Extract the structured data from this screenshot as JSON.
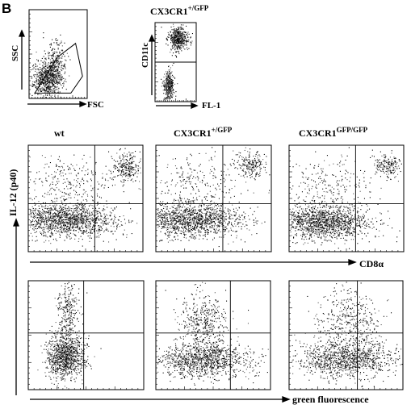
{
  "figure": {
    "panel_letter": "B",
    "gating": {
      "left_plot": {
        "x_axis": "FSC",
        "y_axis": "SSC"
      },
      "right_plot": {
        "title_main": "CX3CR1",
        "title_sup": "+/GFP",
        "x_axis": "FL-1",
        "y_axis": "CD11c"
      }
    },
    "columns": [
      {
        "main": "wt",
        "sup": ""
      },
      {
        "main": "CX3CR1",
        "sup": "+/GFP"
      },
      {
        "main": "CX3CR1",
        "sup": "GFP/GFP"
      }
    ],
    "shared_y_label": "IL-12 (p40)",
    "row1_x_label": "CD8α",
    "row2_x_label": "green fluorescence",
    "colors": {
      "ink": "#000000",
      "background": "#ffffff"
    }
  },
  "chart_data": [
    {
      "type": "scatter",
      "panel": "gating-scatter",
      "xlabel": "FSC",
      "ylabel": "SSC",
      "populations": [
        {
          "cx": 0.3,
          "cy": 0.22,
          "sx": 0.12,
          "sy": 0.1,
          "n": 700
        },
        {
          "cx": 0.45,
          "cy": 0.4,
          "sx": 0.1,
          "sy": 0.14,
          "n": 250
        }
      ],
      "gate": "polygon"
    },
    {
      "type": "scatter",
      "panel": "gating-cd11c",
      "xlabel": "FL-1",
      "ylabel": "CD11c",
      "populations": [
        {
          "cx": 0.55,
          "cy": 0.8,
          "sx": 0.12,
          "sy": 0.07,
          "n": 500
        },
        {
          "cx": 0.32,
          "cy": 0.2,
          "sx": 0.06,
          "sy": 0.1,
          "n": 350
        }
      ],
      "quadrant": [
        0.0,
        0.5
      ]
    },
    {
      "type": "scatter",
      "panel": "wt-il12-cd8",
      "xlabel": "CD8α",
      "ylabel": "IL-12 (p40)",
      "populations": [
        {
          "cx": 0.33,
          "cy": 0.3,
          "sx": 0.22,
          "sy": 0.08,
          "n": 1400
        },
        {
          "cx": 0.85,
          "cy": 0.8,
          "sx": 0.06,
          "sy": 0.07,
          "n": 250
        },
        {
          "cx": 0.35,
          "cy": 0.65,
          "sx": 0.22,
          "sy": 0.14,
          "n": 300
        }
      ],
      "quadrant": [
        0.58,
        0.45
      ]
    },
    {
      "type": "scatter",
      "panel": "het-il12-cd8",
      "xlabel": "CD8α",
      "ylabel": "IL-12 (p40)",
      "populations": [
        {
          "cx": 0.3,
          "cy": 0.3,
          "sx": 0.22,
          "sy": 0.08,
          "n": 1400
        },
        {
          "cx": 0.82,
          "cy": 0.82,
          "sx": 0.07,
          "sy": 0.06,
          "n": 200
        },
        {
          "cx": 0.35,
          "cy": 0.62,
          "sx": 0.22,
          "sy": 0.15,
          "n": 280
        }
      ],
      "quadrant": [
        0.58,
        0.45
      ]
    },
    {
      "type": "scatter",
      "panel": "ko-il12-cd8",
      "xlabel": "CD8α",
      "ylabel": "IL-12 (p40)",
      "populations": [
        {
          "cx": 0.3,
          "cy": 0.28,
          "sx": 0.2,
          "sy": 0.08,
          "n": 1400
        },
        {
          "cx": 0.85,
          "cy": 0.82,
          "sx": 0.06,
          "sy": 0.06,
          "n": 180
        },
        {
          "cx": 0.35,
          "cy": 0.62,
          "sx": 0.22,
          "sy": 0.15,
          "n": 260
        }
      ],
      "quadrant": [
        0.58,
        0.45
      ]
    },
    {
      "type": "scatter",
      "panel": "wt-il12-green",
      "xlabel": "green fluorescence",
      "ylabel": "IL-12 (p40)",
      "populations": [
        {
          "cx": 0.32,
          "cy": 0.3,
          "sx": 0.08,
          "sy": 0.1,
          "n": 1000
        },
        {
          "cx": 0.34,
          "cy": 0.7,
          "sx": 0.05,
          "sy": 0.16,
          "n": 300
        }
      ],
      "quadrant": [
        0.48,
        0.52
      ]
    },
    {
      "type": "scatter",
      "panel": "het-il12-green",
      "xlabel": "green fluorescence",
      "ylabel": "IL-12 (p40)",
      "populations": [
        {
          "cx": 0.42,
          "cy": 0.27,
          "sx": 0.2,
          "sy": 0.08,
          "n": 1100
        },
        {
          "cx": 0.42,
          "cy": 0.62,
          "sx": 0.1,
          "sy": 0.14,
          "n": 450
        }
      ],
      "quadrant": [
        0.65,
        0.52
      ]
    },
    {
      "type": "scatter",
      "panel": "ko-il12-green",
      "xlabel": "green fluorescence",
      "ylabel": "IL-12 (p40)",
      "populations": [
        {
          "cx": 0.5,
          "cy": 0.28,
          "sx": 0.22,
          "sy": 0.08,
          "n": 1100
        },
        {
          "cx": 0.52,
          "cy": 0.62,
          "sx": 0.14,
          "sy": 0.15,
          "n": 450
        }
      ],
      "quadrant": [
        0.6,
        0.52
      ]
    }
  ]
}
